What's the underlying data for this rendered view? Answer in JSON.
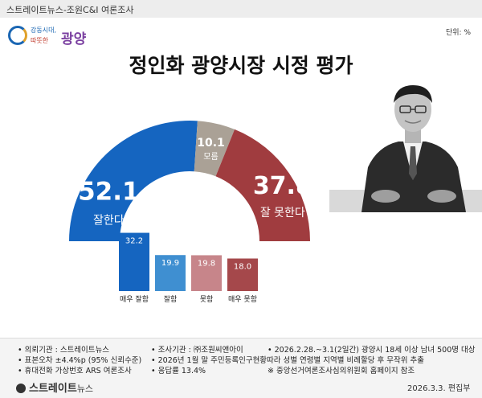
{
  "header": {
    "source": "스트레이트뉴스-조원C&I 여론조사"
  },
  "logo": {
    "line1": "강동시대,",
    "line2": "따뜻한",
    "word": "광양"
  },
  "unit": "단위: %",
  "title": "정인화 광양시장 시정 평가",
  "chart_data": [
    {
      "type": "pie",
      "title": "정인화 광양시장 시정 평가",
      "categories": [
        "잘한다",
        "모름",
        "잘 못한다"
      ],
      "values": [
        52.1,
        10.1,
        37.8
      ],
      "colors": [
        "#1565c0",
        "#aaa196",
        "#a03c3f"
      ]
    },
    {
      "type": "bar",
      "categories": [
        "매우 잘함",
        "잘함",
        "못함",
        "매우 못함"
      ],
      "values": [
        32.2,
        19.9,
        19.8,
        18.0
      ],
      "colors": [
        "#1565c0",
        "#3f8fd1",
        "#c7858a",
        "#a5484b"
      ]
    }
  ],
  "footer": {
    "col1": [
      "• 의뢰기관 : 스트레이트뉴스",
      "• 표본오차 ±4.4%p (95% 신뢰수준)",
      "• 휴대전화 가상번호 ARS 여론조사"
    ],
    "col2": [
      "• 조사기관 : ㈜조원씨앤아이",
      "• 2026년 1월 말 주민등록인구현황따라 성별 연령별 지역별 비례할당 후 무작위 추출",
      "• 응답률 13.4%"
    ],
    "col3": [
      "• 2026.2.28.~3.1(2일간) 광양시 18세 이상 남녀 500명 대상",
      "",
      "※ 중앙선거여론조사심의위원회 홈페이지 참조"
    ],
    "brand": "스트레이트",
    "brand_suffix": "뉴스",
    "credit": "2026.3.3. 편집부"
  }
}
